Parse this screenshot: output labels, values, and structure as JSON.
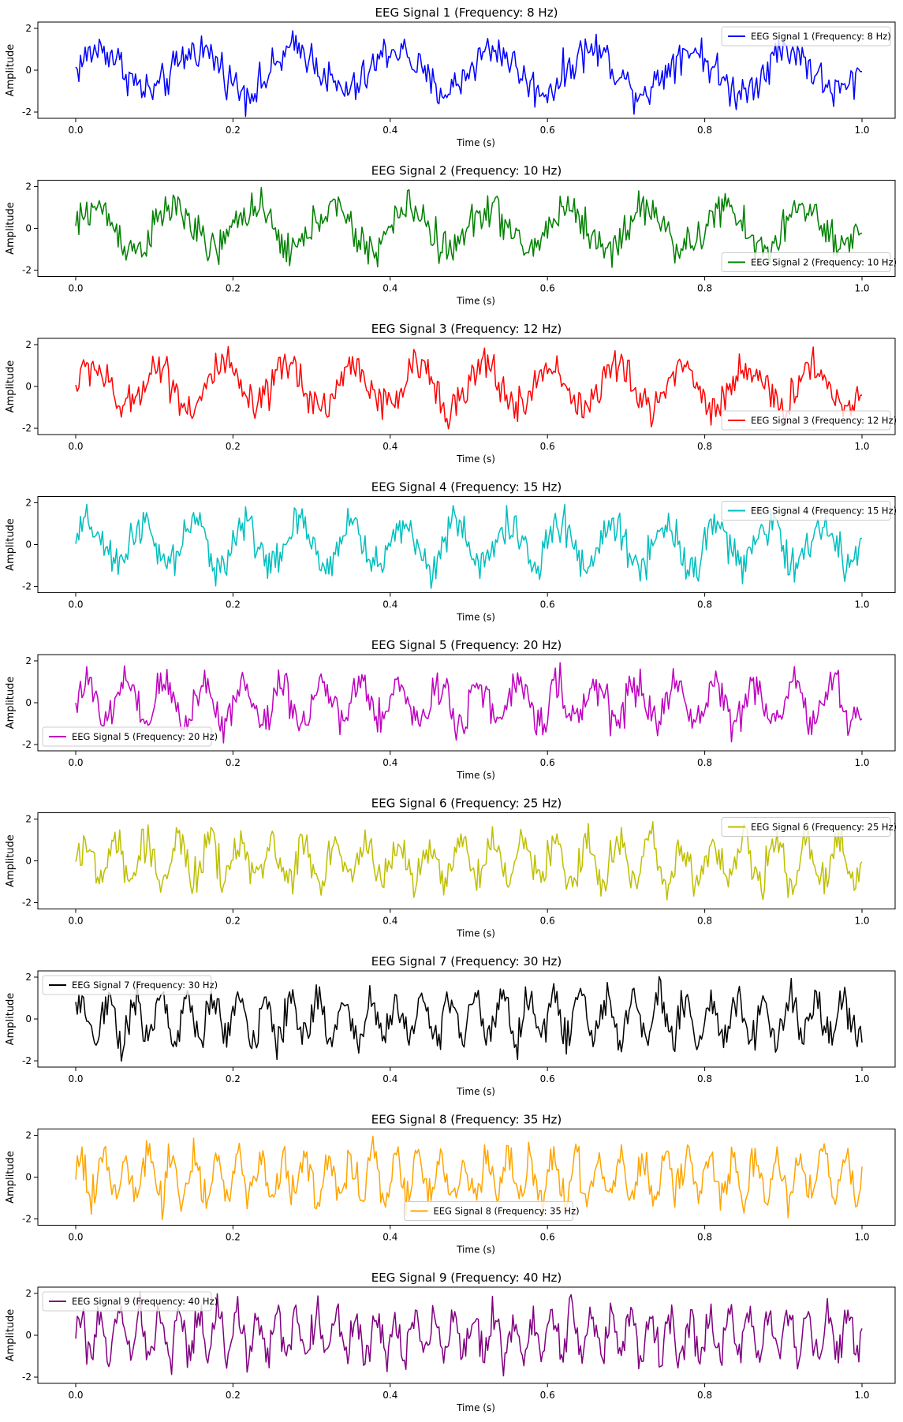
{
  "chart_data": [
    {
      "type": "line",
      "title": "EEG Signal 1 (Frequency: 8 Hz)",
      "xlabel": "Time (s)",
      "ylabel": "Amplitude",
      "freq": 8,
      "color": "#0000ff",
      "legend": {
        "label": "EEG Signal 1 (Frequency: 8 Hz)",
        "position": "upper right"
      },
      "xlim": [
        0.0,
        1.0
      ],
      "ylim": [
        -2.3,
        2.3
      ],
      "xticks": [
        "0.0",
        "0.2",
        "0.4",
        "0.6",
        "0.8",
        "1.0"
      ],
      "yticks": [
        2,
        0,
        -2
      ]
    },
    {
      "type": "line",
      "title": "EEG Signal 2 (Frequency: 10 Hz)",
      "xlabel": "Time (s)",
      "ylabel": "Amplitude",
      "freq": 10,
      "color": "#008000",
      "legend": {
        "label": "EEG Signal 2 (Frequency: 10 Hz)",
        "position": "lower right"
      },
      "xlim": [
        0.0,
        1.0
      ],
      "ylim": [
        -2.3,
        2.3
      ],
      "xticks": [
        "0.0",
        "0.2",
        "0.4",
        "0.6",
        "0.8",
        "1.0"
      ],
      "yticks": [
        2,
        0,
        -2
      ]
    },
    {
      "type": "line",
      "title": "EEG Signal 3 (Frequency: 12 Hz)",
      "xlabel": "Time (s)",
      "ylabel": "Amplitude",
      "freq": 12,
      "color": "#ff0000",
      "legend": {
        "label": "EEG Signal 3 (Frequency: 12 Hz)",
        "position": "lower right"
      },
      "xlim": [
        0.0,
        1.0
      ],
      "ylim": [
        -2.3,
        2.3
      ],
      "xticks": [
        "0.0",
        "0.2",
        "0.4",
        "0.6",
        "0.8",
        "1.0"
      ],
      "yticks": [
        2,
        0,
        -2
      ]
    },
    {
      "type": "line",
      "title": "EEG Signal 4 (Frequency: 15 Hz)",
      "xlabel": "Time (s)",
      "ylabel": "Amplitude",
      "freq": 15,
      "color": "#00bfbf",
      "legend": {
        "label": "EEG Signal 4 (Frequency: 15 Hz)",
        "position": "upper right"
      },
      "xlim": [
        0.0,
        1.0
      ],
      "ylim": [
        -2.3,
        2.3
      ],
      "xticks": [
        "0.0",
        "0.2",
        "0.4",
        "0.6",
        "0.8",
        "1.0"
      ],
      "yticks": [
        2,
        0,
        -2
      ]
    },
    {
      "type": "line",
      "title": "EEG Signal 5 (Frequency: 20 Hz)",
      "xlabel": "Time (s)",
      "ylabel": "Amplitude",
      "freq": 20,
      "color": "#bf00bf",
      "legend": {
        "label": "EEG Signal 5 (Frequency: 20 Hz)",
        "position": "lower left"
      },
      "xlim": [
        0.0,
        1.0
      ],
      "ylim": [
        -2.3,
        2.3
      ],
      "xticks": [
        "0.0",
        "0.2",
        "0.4",
        "0.6",
        "0.8",
        "1.0"
      ],
      "yticks": [
        2,
        0,
        -2
      ]
    },
    {
      "type": "line",
      "title": "EEG Signal 6 (Frequency: 25 Hz)",
      "xlabel": "Time (s)",
      "ylabel": "Amplitude",
      "freq": 25,
      "color": "#bfbf00",
      "legend": {
        "label": "EEG Signal 6 (Frequency: 25 Hz)",
        "position": "upper right"
      },
      "xlim": [
        0.0,
        1.0
      ],
      "ylim": [
        -2.3,
        2.3
      ],
      "xticks": [
        "0.0",
        "0.2",
        "0.4",
        "0.6",
        "0.8",
        "1.0"
      ],
      "yticks": [
        2,
        0,
        -2
      ]
    },
    {
      "type": "line",
      "title": "EEG Signal 7 (Frequency: 30 Hz)",
      "xlabel": "Time (s)",
      "ylabel": "Amplitude",
      "freq": 30,
      "color": "#000000",
      "legend": {
        "label": "EEG Signal 7 (Frequency: 30 Hz)",
        "position": "upper left"
      },
      "xlim": [
        0.0,
        1.0
      ],
      "ylim": [
        -2.3,
        2.3
      ],
      "xticks": [
        "0.0",
        "0.2",
        "0.4",
        "0.6",
        "0.8",
        "1.0"
      ],
      "yticks": [
        2,
        0,
        -2
      ]
    },
    {
      "type": "line",
      "title": "EEG Signal 8 (Frequency: 35 Hz)",
      "xlabel": "Time (s)",
      "ylabel": "Amplitude",
      "freq": 35,
      "color": "#ffa500",
      "legend": {
        "label": "EEG Signal 8 (Frequency: 35 Hz)",
        "position": "lower center"
      },
      "xlim": [
        0.0,
        1.0
      ],
      "ylim": [
        -2.3,
        2.3
      ],
      "xticks": [
        "0.0",
        "0.2",
        "0.4",
        "0.6",
        "0.8",
        "1.0"
      ],
      "yticks": [
        2,
        0,
        -2
      ]
    },
    {
      "type": "line",
      "title": "EEG Signal 9 (Frequency: 40 Hz)",
      "xlabel": "Time (s)",
      "ylabel": "Amplitude",
      "freq": 40,
      "color": "#800080",
      "legend": {
        "label": "EEG Signal 9 (Frequency: 40 Hz)",
        "position": "upper left"
      },
      "xlim": [
        0.0,
        1.0
      ],
      "ylim": [
        -2.3,
        2.3
      ],
      "xticks": [
        "0.0",
        "0.2",
        "0.4",
        "0.6",
        "0.8",
        "1.0"
      ],
      "yticks": [
        2,
        0,
        -2
      ]
    }
  ]
}
